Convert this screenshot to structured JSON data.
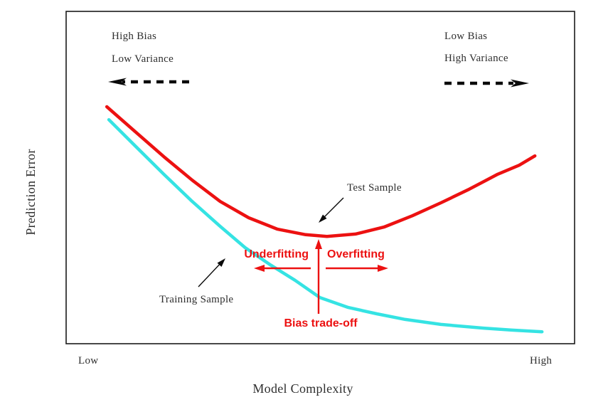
{
  "figure": {
    "background": "#ffffff",
    "frame_color": "#1a1a1a",
    "text_color": "#2e2e2e",
    "accent_red": "#ec1111",
    "accent_cyan": "#35e3e3"
  },
  "axes": {
    "ylabel": "Prediction Error",
    "xlabel": "Model Complexity",
    "x_min_label": "Low",
    "x_max_label": "High"
  },
  "annotations": {
    "top_left_line1": "High Bias",
    "top_left_line2": "Low Variance",
    "top_right_line1": "Low Bias",
    "top_right_line2": "High Variance",
    "test_sample": "Test Sample",
    "training_sample": "Training Sample",
    "underfitting": "Underfitting",
    "overfitting": "Overfitting",
    "bias_tradeoff": "Bias trade-off"
  },
  "chart_data": {
    "type": "line",
    "title": "Bias-variance trade-off (test vs. training error)",
    "xlabel": "Model Complexity",
    "ylabel": "Prediction Error",
    "x_axis": {
      "min": 0,
      "max": 1,
      "tick_labels": [
        "Low",
        "High"
      ],
      "numeric_ticks": false
    },
    "y_axis": {
      "min": 0,
      "max": 1,
      "numeric_ticks": false
    },
    "grid": false,
    "legend_position": "none (in-plot arrow annotations)",
    "series": [
      {
        "name": "Test Sample",
        "color": "#ec1111",
        "x": [
          0.08,
          0.136,
          0.192,
          0.248,
          0.303,
          0.359,
          0.415,
          0.471,
          0.513,
          0.569,
          0.625,
          0.681,
          0.737,
          0.793,
          0.849,
          0.891,
          0.922
        ],
        "y": [
          0.713,
          0.638,
          0.563,
          0.492,
          0.428,
          0.379,
          0.345,
          0.328,
          0.323,
          0.33,
          0.351,
          0.385,
          0.424,
          0.465,
          0.51,
          0.537,
          0.565
        ]
      },
      {
        "name": "Training Sample",
        "color": "#35e3e3",
        "x": [
          0.084,
          0.136,
          0.192,
          0.248,
          0.303,
          0.352,
          0.401,
          0.45,
          0.499,
          0.555,
          0.611,
          0.667,
          0.737,
          0.821,
          0.877,
          0.936
        ],
        "y": [
          0.674,
          0.595,
          0.51,
          0.428,
          0.353,
          0.289,
          0.238,
          0.191,
          0.139,
          0.109,
          0.09,
          0.073,
          0.058,
          0.047,
          0.041,
          0.036
        ]
      }
    ],
    "annotations": [
      {
        "text": "High Bias / Low Variance",
        "position": "top-left",
        "arrow": "dashed, pointing left"
      },
      {
        "text": "Low Bias / High Variance",
        "position": "top-right",
        "arrow": "dashed, pointing right"
      },
      {
        "text": "Test Sample",
        "points_to": "red test-error curve near its minimum"
      },
      {
        "text": "Training Sample",
        "points_to": "cyan training-error curve"
      },
      {
        "text": "Underfitting",
        "color": "#ec1111",
        "arrow": "red, pointing left of optimum"
      },
      {
        "text": "Overfitting",
        "color": "#ec1111",
        "arrow": "red, pointing right of optimum"
      },
      {
        "text": "Bias trade-off",
        "color": "#ec1111",
        "arrow": "red vertical, pointing up to test-error minimum at x ≈ 0.5"
      }
    ]
  }
}
